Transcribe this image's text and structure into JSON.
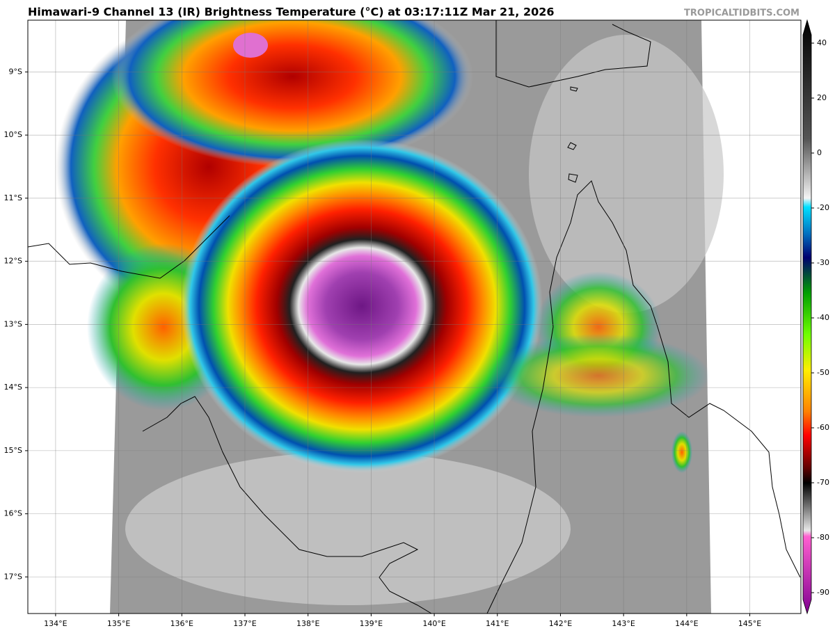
{
  "header": {
    "title": "Himawari-9 Channel 13 (IR) Brightness Temperature (°C) at 03:17:11Z Mar 21, 2026",
    "credit": "TROPICALTIDBITS.COM"
  },
  "map": {
    "lonlim": [
      133.56,
      145.81
    ],
    "latlim": [
      -17.58,
      -8.18
    ],
    "lon_ticks": [
      {
        "value": 134,
        "label": "134°E"
      },
      {
        "value": 135,
        "label": "135°E"
      },
      {
        "value": 136,
        "label": "136°E"
      },
      {
        "value": 137,
        "label": "137°E"
      },
      {
        "value": 138,
        "label": "138°E"
      },
      {
        "value": 139,
        "label": "139°E"
      },
      {
        "value": 140,
        "label": "140°E"
      },
      {
        "value": 141,
        "label": "141°E"
      },
      {
        "value": 142,
        "label": "142°E"
      },
      {
        "value": 143,
        "label": "143°E"
      },
      {
        "value": 144,
        "label": "144°E"
      },
      {
        "value": 145,
        "label": "145°E"
      }
    ],
    "lat_ticks": [
      {
        "value": -9,
        "label": "9°S"
      },
      {
        "value": -10,
        "label": "10°S"
      },
      {
        "value": -11,
        "label": "11°S"
      },
      {
        "value": -12,
        "label": "12°S"
      },
      {
        "value": -13,
        "label": "13°S"
      },
      {
        "value": -14,
        "label": "14°S"
      },
      {
        "value": -15,
        "label": "15°S"
      },
      {
        "value": -16,
        "label": "16°S"
      },
      {
        "value": -17,
        "label": "17°S"
      }
    ]
  },
  "colorbar": {
    "ticks": [
      40,
      20,
      0,
      -20,
      -30,
      -40,
      -50,
      -60,
      -70,
      -80,
      -90
    ]
  }
}
